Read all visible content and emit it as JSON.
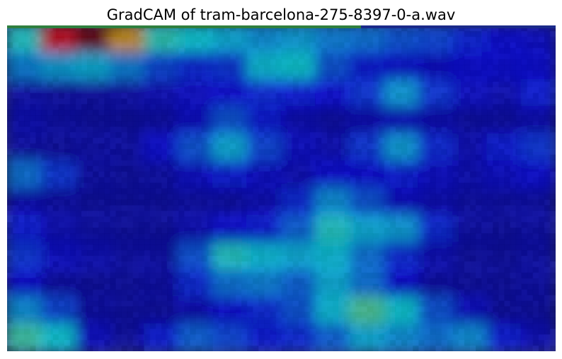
{
  "chart_data": {
    "type": "heatmap",
    "title": "GradCAM of tram-barcelona-275-8397-0-a.wav",
    "xlabel": "",
    "ylabel": "",
    "axes_visible": false,
    "colormap": "jet",
    "background_colormap": "greys",
    "overlay_alpha": 0.5,
    "grid": false,
    "background_base_color": "#2a2f66",
    "activation_grid": [
      [
        0.4,
        0.88,
        1.0,
        0.7,
        0.42,
        0.38,
        0.34,
        0.3,
        0.32,
        0.28,
        0.26,
        0.22,
        0.2,
        0.15,
        0.12,
        0.1
      ],
      [
        0.28,
        0.32,
        0.34,
        0.28,
        0.2,
        0.16,
        0.18,
        0.36,
        0.38,
        0.22,
        0.14,
        0.12,
        0.1,
        0.12,
        0.12,
        0.12
      ],
      [
        0.06,
        0.05,
        0.05,
        0.06,
        0.08,
        0.1,
        0.12,
        0.16,
        0.14,
        0.12,
        0.18,
        0.32,
        0.18,
        0.1,
        0.08,
        0.14
      ],
      [
        0.08,
        0.06,
        0.05,
        0.05,
        0.06,
        0.1,
        0.22,
        0.14,
        0.08,
        0.06,
        0.08,
        0.1,
        0.08,
        0.06,
        0.06,
        0.08
      ],
      [
        0.06,
        0.05,
        0.06,
        0.06,
        0.12,
        0.22,
        0.34,
        0.2,
        0.1,
        0.08,
        0.18,
        0.32,
        0.16,
        0.08,
        0.14,
        0.18
      ],
      [
        0.26,
        0.18,
        0.06,
        0.05,
        0.06,
        0.1,
        0.14,
        0.1,
        0.08,
        0.12,
        0.12,
        0.14,
        0.1,
        0.08,
        0.1,
        0.12
      ],
      [
        0.08,
        0.06,
        0.05,
        0.05,
        0.05,
        0.06,
        0.06,
        0.08,
        0.16,
        0.3,
        0.22,
        0.1,
        0.08,
        0.06,
        0.06,
        0.06
      ],
      [
        0.14,
        0.08,
        0.06,
        0.05,
        0.05,
        0.08,
        0.12,
        0.14,
        0.24,
        0.4,
        0.34,
        0.32,
        0.16,
        0.06,
        0.05,
        0.06
      ],
      [
        0.18,
        0.1,
        0.08,
        0.06,
        0.06,
        0.22,
        0.4,
        0.36,
        0.34,
        0.36,
        0.26,
        0.16,
        0.08,
        0.05,
        0.05,
        0.06
      ],
      [
        0.12,
        0.06,
        0.05,
        0.05,
        0.06,
        0.16,
        0.26,
        0.28,
        0.24,
        0.34,
        0.26,
        0.12,
        0.06,
        0.05,
        0.05,
        0.06
      ],
      [
        0.3,
        0.2,
        0.06,
        0.05,
        0.05,
        0.08,
        0.12,
        0.16,
        0.22,
        0.36,
        0.46,
        0.38,
        0.22,
        0.1,
        0.05,
        0.05
      ],
      [
        0.44,
        0.38,
        0.1,
        0.05,
        0.14,
        0.24,
        0.2,
        0.14,
        0.16,
        0.24,
        0.34,
        0.3,
        0.26,
        0.3,
        0.14,
        0.08
      ]
    ]
  }
}
